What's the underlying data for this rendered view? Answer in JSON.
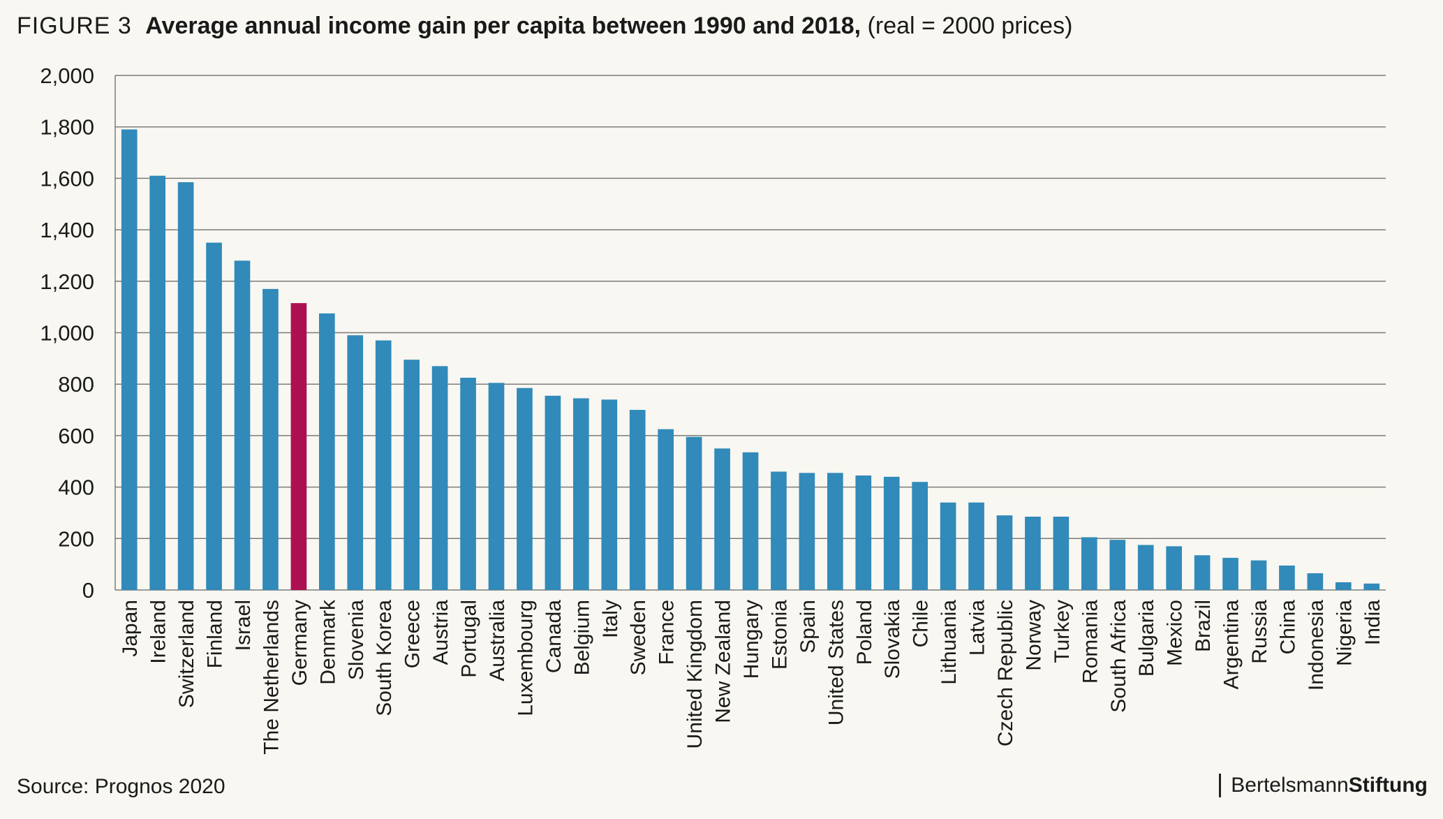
{
  "figure_label": "FIGURE 3",
  "title": "Average annual income gain per capita between 1990 and 2018,",
  "subtitle": "(real = 2000 prices)",
  "source": "Source: Prognos 2020",
  "brand": {
    "light": "Bertelsmann",
    "bold": "Stiftung"
  },
  "colors": {
    "bar": "#318ab9",
    "highlight": "#ad1050",
    "grid": "#7b7b7b"
  },
  "chart_data": {
    "type": "bar",
    "categories": [
      "Japan",
      "Ireland",
      "Switzerland",
      "Finland",
      "Israel",
      "The Netherlands",
      "Germany",
      "Denmark",
      "Slovenia",
      "South Korea",
      "Greece",
      "Austria",
      "Portugal",
      "Australia",
      "Luxembourg",
      "Canada",
      "Belgium",
      "Italy",
      "Sweden",
      "France",
      "United Kingdom",
      "New Zealand",
      "Hungary",
      "Estonia",
      "Spain",
      "United States",
      "Poland",
      "Slovakia",
      "Chile",
      "Lithuania",
      "Latvia",
      "Czech Republic",
      "Norway",
      "Turkey",
      "Romania",
      "South Africa",
      "Bulgaria",
      "Mexico",
      "Brazil",
      "Argentina",
      "Russia",
      "China",
      "Indonesia",
      "Nigeria",
      "India"
    ],
    "values": [
      1790,
      1610,
      1585,
      1350,
      1280,
      1170,
      1115,
      1075,
      990,
      970,
      895,
      870,
      825,
      805,
      785,
      755,
      745,
      740,
      700,
      625,
      595,
      550,
      535,
      460,
      455,
      455,
      445,
      440,
      420,
      340,
      340,
      290,
      285,
      285,
      205,
      195,
      175,
      170,
      135,
      125,
      115,
      95,
      65,
      30,
      25
    ],
    "highlight": "Germany",
    "ylim": [
      0,
      2000
    ],
    "yticks": [
      0,
      200,
      400,
      600,
      800,
      1000,
      1200,
      1400,
      1600,
      1800,
      2000
    ],
    "ytick_labels": [
      "0",
      "200",
      "400",
      "600",
      "800",
      "1,000",
      "1,200",
      "1,400",
      "1,600",
      "1,800",
      "2,000"
    ],
    "grid": true
  }
}
